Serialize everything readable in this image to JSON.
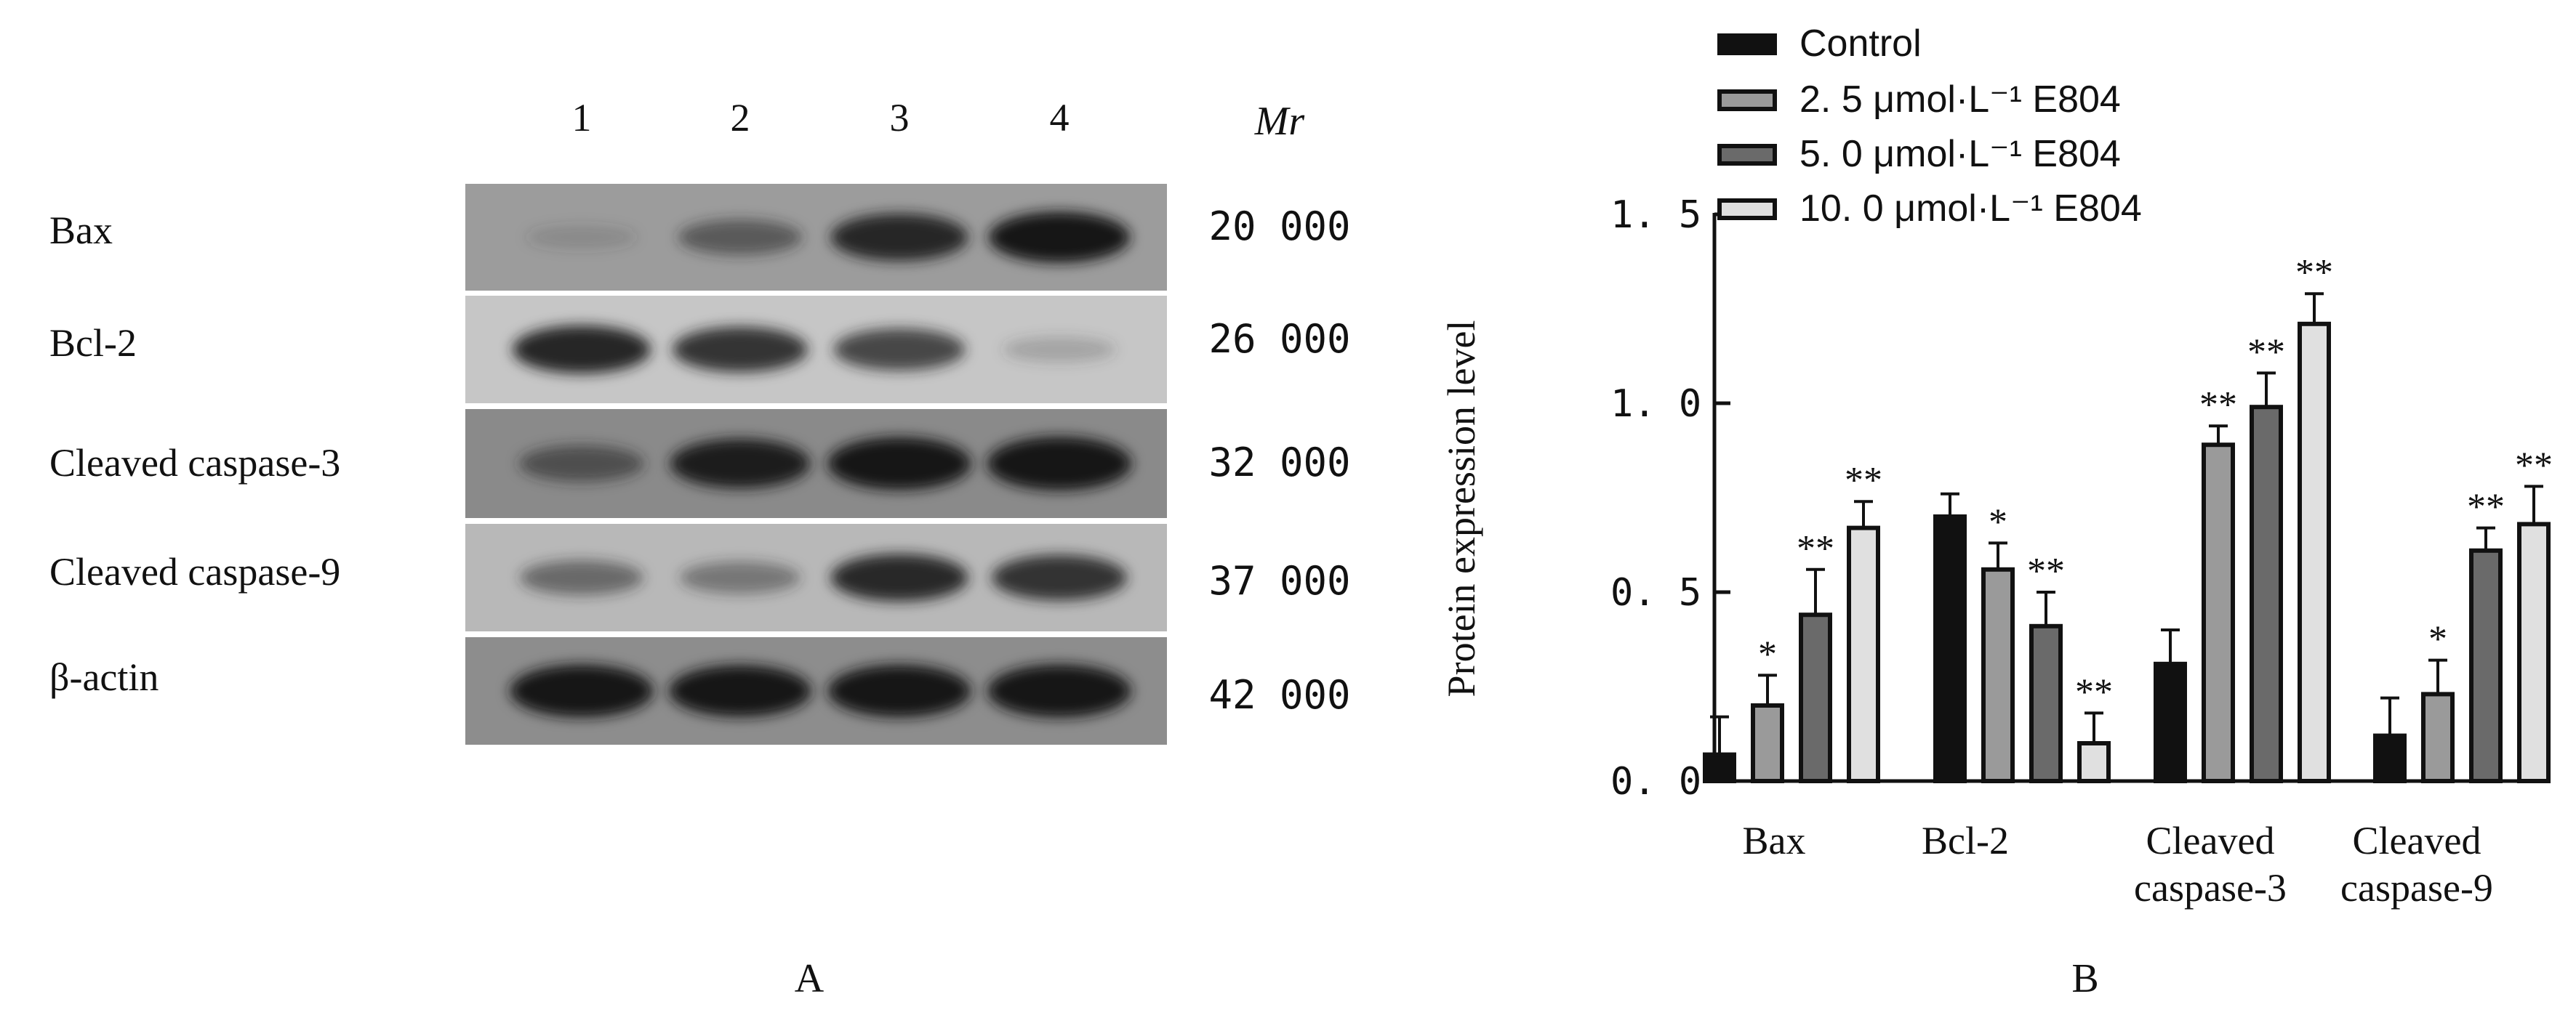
{
  "panel_a": {
    "panel_label": "A",
    "lanes": [
      "1",
      "2",
      "3",
      "4"
    ],
    "mr_header": "Mr",
    "rows": [
      {
        "protein": "Bax",
        "mr": "20 000",
        "intensities": [
          0.04,
          0.42,
          0.78,
          0.9
        ]
      },
      {
        "protein": "Bcl-2",
        "mr": "26 000",
        "intensities": [
          0.8,
          0.72,
          0.62,
          0.1
        ]
      },
      {
        "protein": "Cleaved caspase-3",
        "mr": "32 000",
        "intensities": [
          0.45,
          0.85,
          0.95,
          0.98
        ]
      },
      {
        "protein": "Cleaved caspase-9",
        "mr": "37 000",
        "intensities": [
          0.4,
          0.32,
          0.78,
          0.72
        ]
      },
      {
        "protein": "β-actin",
        "mr": "42 000",
        "intensities": [
          0.95,
          0.92,
          0.94,
          0.96
        ]
      }
    ]
  },
  "chart_data": {
    "type": "bar",
    "panel_label": "B",
    "ylabel": "Protein expression level",
    "xlabel": "",
    "ylim": [
      0.0,
      1.5
    ],
    "yticks": [
      "0. 0",
      "0. 5",
      "1. 0",
      "1. 5"
    ],
    "ytick_values": [
      0.0,
      0.5,
      1.0,
      1.5
    ],
    "categories": [
      [
        "Bax"
      ],
      [
        "Bcl-2"
      ],
      [
        "Cleaved",
        "caspase-3"
      ],
      [
        "Cleaved",
        "caspase-9"
      ]
    ],
    "legend_position": "top-left",
    "series": [
      {
        "name": "Control",
        "fill": "#111111",
        "values": [
          0.07,
          0.7,
          0.31,
          0.12
        ],
        "errors": [
          0.1,
          0.06,
          0.09,
          0.1
        ],
        "marks": [
          "",
          "",
          "",
          ""
        ]
      },
      {
        "name": "2. 5 μmol·L⁻¹ E804",
        "fill": "#9a9a9a",
        "values": [
          0.2,
          0.56,
          0.89,
          0.23
        ],
        "errors": [
          0.08,
          0.07,
          0.05,
          0.09
        ],
        "marks": [
          "*",
          "*",
          "**",
          "*"
        ]
      },
      {
        "name": "5. 0 μmol·L⁻¹ E804",
        "fill": "#6a6a6a",
        "values": [
          0.44,
          0.41,
          0.99,
          0.61
        ],
        "errors": [
          0.12,
          0.09,
          0.09,
          0.06
        ],
        "marks": [
          "**",
          "**",
          "**",
          "**"
        ]
      },
      {
        "name": "10. 0 μmol·L⁻¹ E804",
        "fill": "#e0e0e0",
        "values": [
          0.67,
          0.1,
          1.21,
          0.68
        ],
        "errors": [
          0.07,
          0.08,
          0.08,
          0.1
        ],
        "marks": [
          "**",
          "**",
          "**",
          "**"
        ]
      }
    ]
  }
}
